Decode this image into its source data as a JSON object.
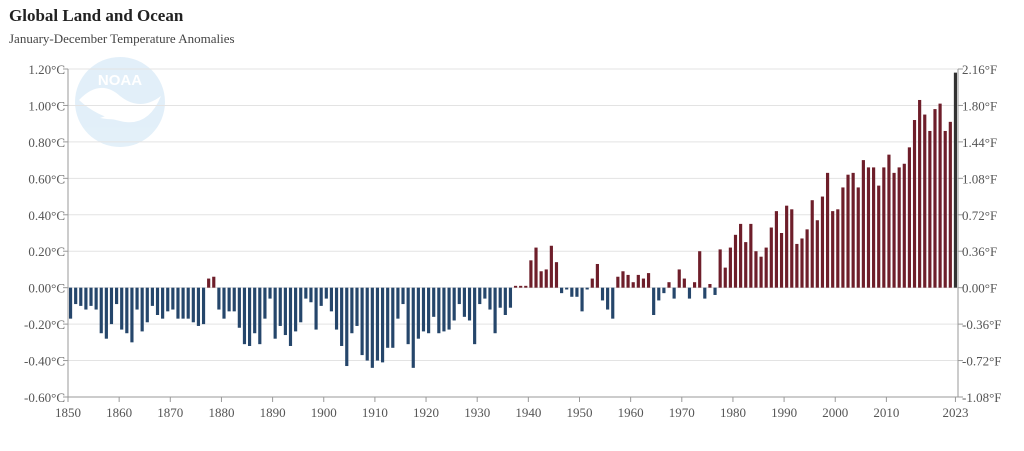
{
  "title": "Global Land and Ocean",
  "subtitle": "January-December Temperature Anomalies",
  "logo_text": "NOAA",
  "colors": {
    "positive": "#6e1e2a",
    "negative": "#25466b",
    "latest": "#333333",
    "grid": "#e3e3e3",
    "axis": "#999999"
  },
  "chart_data": {
    "type": "bar",
    "title": "Global Land and Ocean",
    "subtitle": "January-December Temperature Anomalies",
    "xlabel": "",
    "ylabel": "",
    "ylim": [
      -0.6,
      1.2
    ],
    "grid": true,
    "x_start": 1850,
    "x_end": 2023,
    "x_tick_labels": [
      "1850",
      "1860",
      "1870",
      "1880",
      "1890",
      "1900",
      "1910",
      "1920",
      "1930",
      "1940",
      "1950",
      "1960",
      "1970",
      "1980",
      "1990",
      "2000",
      "2010",
      "2023"
    ],
    "y_ticks_left": [
      {
        "value": 1.2,
        "label": "1.20°C"
      },
      {
        "value": 1.0,
        "label": "1.00°C"
      },
      {
        "value": 0.8,
        "label": "0.80°C"
      },
      {
        "value": 0.6,
        "label": "0.60°C"
      },
      {
        "value": 0.4,
        "label": "0.40°C"
      },
      {
        "value": 0.2,
        "label": "0.20°C"
      },
      {
        "value": 0.0,
        "label": "0.00°C"
      },
      {
        "value": -0.2,
        "label": "-0.20°C"
      },
      {
        "value": -0.4,
        "label": "-0.40°C"
      },
      {
        "value": -0.6,
        "label": "-0.60°C"
      }
    ],
    "y_ticks_right": [
      {
        "value": 1.2,
        "label": "2.16°F"
      },
      {
        "value": 1.0,
        "label": "1.80°F"
      },
      {
        "value": 0.8,
        "label": "1.44°F"
      },
      {
        "value": 0.6,
        "label": "1.08°F"
      },
      {
        "value": 0.4,
        "label": "0.72°F"
      },
      {
        "value": 0.2,
        "label": "0.36°F"
      },
      {
        "value": 0.0,
        "label": "0.00°F"
      },
      {
        "value": -0.2,
        "label": "-0.36°F"
      },
      {
        "value": -0.4,
        "label": "-0.72°F"
      },
      {
        "value": -0.6,
        "label": "-1.08°F"
      }
    ],
    "years": [
      1850,
      1851,
      1852,
      1853,
      1854,
      1855,
      1856,
      1857,
      1858,
      1859,
      1860,
      1861,
      1862,
      1863,
      1864,
      1865,
      1866,
      1867,
      1868,
      1869,
      1870,
      1871,
      1872,
      1873,
      1874,
      1875,
      1876,
      1877,
      1878,
      1879,
      1880,
      1881,
      1882,
      1883,
      1884,
      1885,
      1886,
      1887,
      1888,
      1889,
      1890,
      1891,
      1892,
      1893,
      1894,
      1895,
      1896,
      1897,
      1898,
      1899,
      1900,
      1901,
      1902,
      1903,
      1904,
      1905,
      1906,
      1907,
      1908,
      1909,
      1910,
      1911,
      1912,
      1913,
      1914,
      1915,
      1916,
      1917,
      1918,
      1919,
      1920,
      1921,
      1922,
      1923,
      1924,
      1925,
      1926,
      1927,
      1928,
      1929,
      1930,
      1931,
      1932,
      1933,
      1934,
      1935,
      1936,
      1937,
      1938,
      1939,
      1940,
      1941,
      1942,
      1943,
      1944,
      1945,
      1946,
      1947,
      1948,
      1949,
      1950,
      1951,
      1952,
      1953,
      1954,
      1955,
      1956,
      1957,
      1958,
      1959,
      1960,
      1961,
      1962,
      1963,
      1964,
      1965,
      1966,
      1967,
      1968,
      1969,
      1970,
      1971,
      1972,
      1973,
      1974,
      1975,
      1976,
      1977,
      1978,
      1979,
      1980,
      1981,
      1982,
      1983,
      1984,
      1985,
      1986,
      1987,
      1988,
      1989,
      1990,
      1991,
      1992,
      1993,
      1994,
      1995,
      1996,
      1997,
      1998,
      1999,
      2000,
      2001,
      2002,
      2003,
      2004,
      2005,
      2006,
      2007,
      2008,
      2009,
      2010,
      2011,
      2012,
      2013,
      2014,
      2015,
      2016,
      2017,
      2018,
      2019,
      2020,
      2021,
      2022,
      2023
    ],
    "values": [
      -0.17,
      -0.09,
      -0.1,
      -0.12,
      -0.1,
      -0.12,
      -0.25,
      -0.28,
      -0.2,
      -0.09,
      -0.23,
      -0.25,
      -0.3,
      -0.12,
      -0.24,
      -0.19,
      -0.1,
      -0.15,
      -0.17,
      -0.13,
      -0.12,
      -0.17,
      -0.17,
      -0.17,
      -0.19,
      -0.21,
      -0.2,
      0.05,
      0.06,
      -0.12,
      -0.17,
      -0.13,
      -0.13,
      -0.22,
      -0.31,
      -0.32,
      -0.25,
      -0.31,
      -0.17,
      -0.06,
      -0.28,
      -0.21,
      -0.26,
      -0.32,
      -0.24,
      -0.19,
      -0.06,
      -0.08,
      -0.23,
      -0.1,
      -0.06,
      -0.13,
      -0.23,
      -0.32,
      -0.43,
      -0.25,
      -0.21,
      -0.37,
      -0.4,
      -0.44,
      -0.4,
      -0.41,
      -0.33,
      -0.33,
      -0.17,
      -0.09,
      -0.31,
      -0.44,
      -0.28,
      -0.24,
      -0.25,
      -0.16,
      -0.25,
      -0.24,
      -0.23,
      -0.18,
      -0.09,
      -0.16,
      -0.18,
      -0.31,
      -0.09,
      -0.06,
      -0.12,
      -0.25,
      -0.11,
      -0.15,
      -0.11,
      0.01,
      0.01,
      0.01,
      0.15,
      0.22,
      0.09,
      0.1,
      0.23,
      0.14,
      -0.03,
      -0.01,
      -0.05,
      -0.05,
      -0.13,
      -0.01,
      0.05,
      0.13,
      -0.07,
      -0.12,
      -0.17,
      0.06,
      0.09,
      0.07,
      0.03,
      0.07,
      0.05,
      0.08,
      -0.15,
      -0.07,
      -0.03,
      0.03,
      -0.06,
      0.1,
      0.05,
      -0.06,
      0.03,
      0.2,
      -0.06,
      0.02,
      -0.04,
      0.21,
      0.11,
      0.22,
      0.29,
      0.35,
      0.25,
      0.35,
      0.2,
      0.17,
      0.22,
      0.33,
      0.42,
      0.3,
      0.45,
      0.43,
      0.24,
      0.27,
      0.32,
      0.48,
      0.37,
      0.5,
      0.63,
      0.42,
      0.43,
      0.55,
      0.62,
      0.63,
      0.55,
      0.7,
      0.66,
      0.66,
      0.56,
      0.66,
      0.73,
      0.63,
      0.66,
      0.68,
      0.77,
      0.92,
      1.03,
      0.95,
      0.86,
      0.98,
      1.01,
      0.86,
      0.91,
      1.18
    ]
  }
}
